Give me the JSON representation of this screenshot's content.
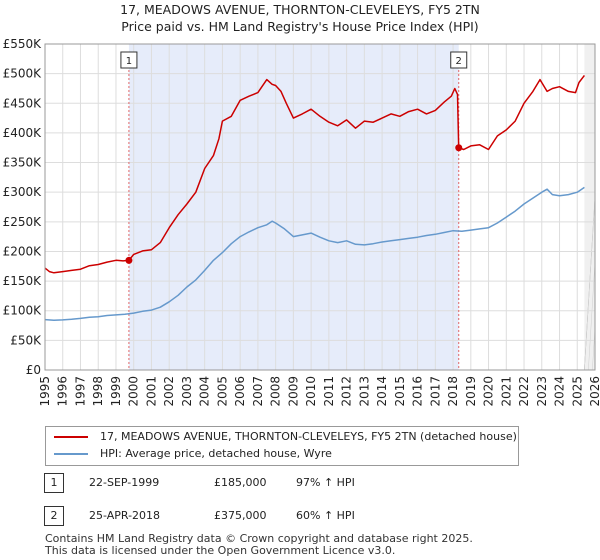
{
  "chart_data": {
    "type": "line",
    "title": "17, MEADOWS AVENUE, THORNTON-CLEVELEYS, FY5 2TN",
    "subtitle": "Price paid vs. HM Land Registry's House Price Index (HPI)",
    "xlim": [
      1995,
      2026
    ],
    "ylim": [
      0,
      550000
    ],
    "x_ticks": [
      1995,
      1996,
      1997,
      1998,
      1999,
      2000,
      2001,
      2002,
      2003,
      2004,
      2005,
      2006,
      2007,
      2008,
      2009,
      2010,
      2011,
      2012,
      2013,
      2014,
      2015,
      2016,
      2017,
      2018,
      2019,
      2020,
      2021,
      2022,
      2023,
      2024,
      2025,
      2026
    ],
    "y_ticks": [
      {
        "value": 0,
        "label": "£0"
      },
      {
        "value": 50000,
        "label": "£50K"
      },
      {
        "value": 100000,
        "label": "£100K"
      },
      {
        "value": 150000,
        "label": "£150K"
      },
      {
        "value": 200000,
        "label": "£200K"
      },
      {
        "value": 250000,
        "label": "£250K"
      },
      {
        "value": 300000,
        "label": "£300K"
      },
      {
        "value": 350000,
        "label": "£350K"
      },
      {
        "value": 400000,
        "label": "£400K"
      },
      {
        "value": 450000,
        "label": "£450K"
      },
      {
        "value": 500000,
        "label": "£500K"
      },
      {
        "value": 550000,
        "label": "£550K"
      }
    ],
    "grid": true,
    "shaded_period": [
      1999.73,
      2018.32
    ],
    "data_end": 2025.4,
    "series": [
      {
        "name": "17, MEADOWS AVENUE, THORNTON-CLEVELEYS, FY5 2TN (detached house)",
        "color": "#cc0000",
        "x": [
          1995,
          1995.25,
          1995.5,
          1996,
          1996.5,
          1997,
          1997.5,
          1998,
          1998.5,
          1999,
          1999.4,
          1999.73,
          2000,
          2000.5,
          2001,
          2001.5,
          2002,
          2002.5,
          2003,
          2003.5,
          2004,
          2004.5,
          2004.8,
          2005,
          2005.5,
          2006,
          2006.5,
          2007,
          2007.5,
          2007.8,
          2008,
          2008.3,
          2008.6,
          2009,
          2009.5,
          2010,
          2010.5,
          2011,
          2011.5,
          2012,
          2012.5,
          2013,
          2013.5,
          2014,
          2014.5,
          2015,
          2015.5,
          2016,
          2016.5,
          2017,
          2017.5,
          2017.9,
          2018.1,
          2018.25,
          2018.32,
          2018.6,
          2019,
          2019.5,
          2020,
          2020.5,
          2021,
          2021.5,
          2022,
          2022.5,
          2022.9,
          2023.3,
          2023.6,
          2024,
          2024.5,
          2024.9,
          2025.1,
          2025.4
        ],
        "values": [
          172000,
          166000,
          164000,
          166000,
          168000,
          170000,
          176000,
          178000,
          182000,
          185000,
          184000,
          185000,
          195000,
          201000,
          203000,
          215000,
          240000,
          262000,
          280000,
          300000,
          340000,
          362000,
          390000,
          420000,
          428000,
          455000,
          462000,
          468000,
          490000,
          482000,
          480000,
          470000,
          450000,
          425000,
          432000,
          440000,
          428000,
          418000,
          412000,
          422000,
          408000,
          420000,
          418000,
          425000,
          432000,
          428000,
          436000,
          440000,
          432000,
          438000,
          452000,
          462000,
          475000,
          465000,
          375000,
          372000,
          378000,
          380000,
          372000,
          395000,
          405000,
          420000,
          450000,
          470000,
          490000,
          470000,
          475000,
          478000,
          470000,
          468000,
          485000,
          497000
        ]
      },
      {
        "name": "HPI: Average price, detached house, Wyre",
        "color": "#6699cc",
        "x": [
          1995,
          1995.5,
          1996,
          1996.5,
          1997,
          1997.5,
          1998,
          1998.5,
          1999,
          1999.5,
          2000,
          2000.5,
          2001,
          2001.5,
          2002,
          2002.5,
          2003,
          2003.5,
          2004,
          2004.5,
          2005,
          2005.5,
          2006,
          2006.5,
          2007,
          2007.5,
          2007.8,
          2008,
          2008.5,
          2009,
          2009.5,
          2010,
          2010.5,
          2011,
          2011.5,
          2012,
          2012.5,
          2013,
          2013.5,
          2014,
          2014.5,
          2015,
          2015.5,
          2016,
          2016.5,
          2017,
          2017.5,
          2018,
          2018.5,
          2019,
          2019.5,
          2020,
          2020.5,
          2021,
          2021.5,
          2022,
          2022.5,
          2023,
          2023.3,
          2023.6,
          2024,
          2024.5,
          2025,
          2025.4
        ],
        "values": [
          85000,
          84000,
          84500,
          85500,
          87000,
          89000,
          90000,
          92000,
          93000,
          94000,
          96000,
          99000,
          101000,
          106000,
          115000,
          126000,
          140000,
          152000,
          168000,
          185000,
          198000,
          213000,
          225000,
          233000,
          240000,
          245000,
          251000,
          248000,
          238000,
          225000,
          228000,
          231000,
          224000,
          218000,
          215000,
          218000,
          212000,
          211000,
          213000,
          216000,
          218000,
          220000,
          222000,
          224000,
          227000,
          229000,
          232000,
          235000,
          234000,
          236000,
          238000,
          240000,
          248000,
          258000,
          268000,
          280000,
          290000,
          300000,
          305000,
          296000,
          294000,
          296000,
          300000,
          308000
        ]
      }
    ],
    "annotations": [
      {
        "label": "1",
        "x": 1999.73,
        "value": 185000
      },
      {
        "label": "2",
        "x": 2018.32,
        "value": 375000
      }
    ]
  },
  "legend": {
    "property_label": "17, MEADOWS AVENUE, THORNTON-CLEVELEYS, FY5 2TN (detached house)",
    "hpi_label": "HPI: Average price, detached house, Wyre",
    "property_color": "#cc0000",
    "hpi_color": "#6699cc"
  },
  "transactions": [
    {
      "marker": "1",
      "date": "22-SEP-1999",
      "price": "£185,000",
      "hpi_change": "97% ↑ HPI"
    },
    {
      "marker": "2",
      "date": "25-APR-2018",
      "price": "£375,000",
      "hpi_change": "60% ↑ HPI"
    }
  ],
  "footer": {
    "line1": "Contains HM Land Registry data © Crown copyright and database right 2025.",
    "line2": "This data is licensed under the Open Government Licence v3.0."
  }
}
